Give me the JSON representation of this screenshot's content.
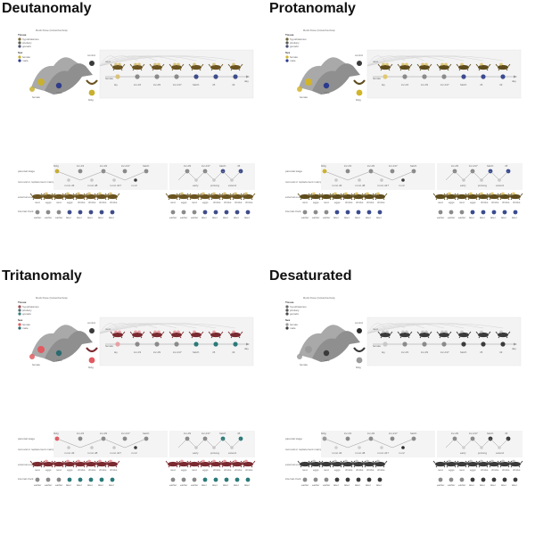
{
  "panels": [
    {
      "key": "deut",
      "title": "Deutanomaly",
      "colors": {
        "tissue_hyp": "#7a6a3a",
        "tissue_pit": "#5b5f4f",
        "tissue_gon": "#4a4e72",
        "female": "#c8b030",
        "male": "#2e3c8a",
        "nest": "#6b5420",
        "egg": "#d9c27a",
        "dark": "#3a3a3a",
        "mid": "#8a8a8a",
        "light": "#c8c8c8",
        "blue": "#3e4c8a"
      }
    },
    {
      "key": "prot",
      "title": "Protanomaly",
      "colors": {
        "tissue_hyp": "#6e6438",
        "tissue_pit": "#585c50",
        "tissue_gon": "#464c74",
        "female": "#d2b428",
        "male": "#2a3a8e",
        "nest": "#5e4c1c",
        "egg": "#e0c870",
        "dark": "#3a3a3a",
        "mid": "#8a8a8a",
        "light": "#c8c8c8",
        "blue": "#3a4a90"
      }
    },
    {
      "key": "trit",
      "title": "Tritanomaly",
      "colors": {
        "tissue_hyp": "#9a4a52",
        "tissue_pit": "#4f6a6e",
        "tissue_gon": "#3a7a7a",
        "female": "#e05a60",
        "male": "#2a6a70",
        "nest": "#7a2a30",
        "egg": "#e8a0a4",
        "dark": "#3a3a3a",
        "mid": "#8a8a8a",
        "light": "#c8c8c8",
        "blue": "#2a7a78"
      }
    },
    {
      "key": "desat",
      "title": "Desaturated",
      "colors": {
        "tissue_hyp": "#666666",
        "tissue_pit": "#555555",
        "tissue_gon": "#4a4a4a",
        "female": "#9a9a9a",
        "male": "#3a3a3a",
        "nest": "#3a3a3a",
        "egg": "#c8c8c8",
        "dark": "#2a2a2a",
        "mid": "#8a8a8a",
        "light": "#cfcfcf",
        "blue": "#3a3a3a"
      }
    }
  ],
  "figure": {
    "species_label": "Rock Dove (Columba livia)",
    "legend_tissue_title": "Tissue",
    "tissues": [
      "hypothalamus",
      "pituitary",
      "gonads"
    ],
    "legend_sex_title": "Sex",
    "sexes": [
      "female",
      "male"
    ],
    "control_label": "control",
    "bldg_label": "bldg",
    "top_timeline": [
      "lay",
      "inc.d3",
      "inc.d9",
      "inc.d17",
      "hatch",
      "n5",
      "n9"
    ],
    "day_label": "day",
    "parental_stage_label": "parental stage",
    "removal_label": "removal or replacement manipulation",
    "external_env_label": "external environment",
    "internal_clock_label": "internal clock",
    "bottom_stages_left": [
      "bldg",
      "inc.d3",
      "inc.d9",
      "inc.d17",
      "hatch"
    ],
    "bottom_manip_left": [
      "m.inc.d3",
      "m.inc.d8",
      "m.inc.d17",
      "m.n2"
    ],
    "bottom_stages_right": [
      "inc.d9",
      "inc.d17",
      "hatch",
      "n5"
    ],
    "bottom_manip_right": [
      "early",
      "prolong",
      "extend"
    ],
    "env_labels": [
      "nest",
      "eggs",
      "nest",
      "eggs",
      "chicks",
      "chicks",
      "chicks",
      "chicks"
    ],
    "clock_labels": [
      "earlier",
      "earlier",
      "earlier",
      "later",
      "later",
      "later",
      "later",
      "later"
    ]
  }
}
